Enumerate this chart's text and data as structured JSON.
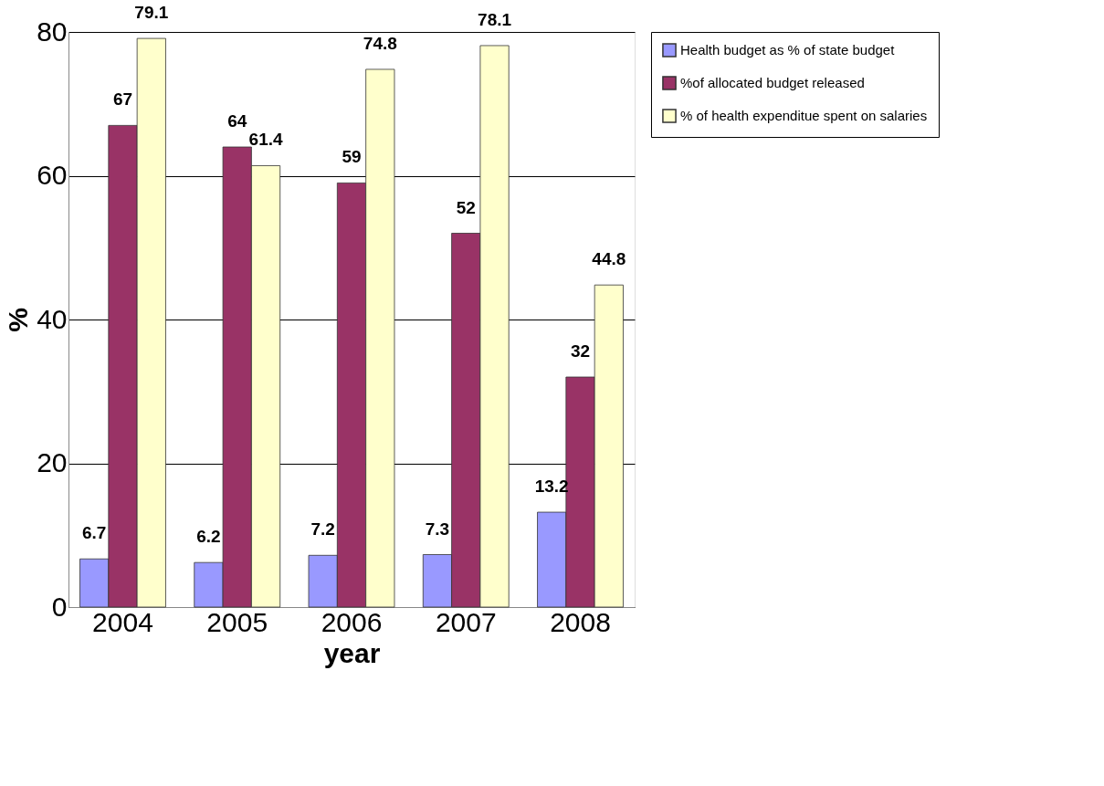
{
  "chart_data": {
    "type": "bar",
    "xlabel": "year",
    "ylabel": "%",
    "categories": [
      "2004",
      "2005",
      "2006",
      "2007",
      "2008"
    ],
    "series": [
      {
        "name": "Health budget as % of state budget",
        "color": "#9999ff",
        "values": [
          6.7,
          6.2,
          7.2,
          7.3,
          13.2
        ]
      },
      {
        "name": "%of allocated budget released",
        "color": "#993366",
        "values": [
          67,
          64,
          59,
          52,
          32
        ]
      },
      {
        "name": "% of health expenditue spent on salaries",
        "color": "#ffffcc",
        "values": [
          79.1,
          61.4,
          74.8,
          78.1,
          44.8
        ]
      }
    ],
    "ylim": [
      0,
      80
    ],
    "yticks": [
      0,
      20,
      40,
      60,
      80
    ],
    "grid": "y",
    "legend": "right",
    "data_labels": true
  }
}
